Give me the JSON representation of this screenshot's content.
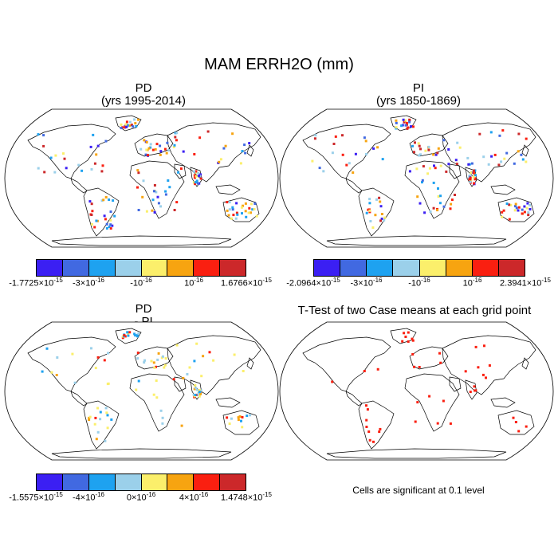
{
  "main_title": "MAM ERRH2O (mm)",
  "panels": {
    "pd": {
      "title": "PD",
      "subtitle": "(yrs 1995-2014)"
    },
    "pi": {
      "title": "PI",
      "subtitle": "(yrs 1850-1869)"
    },
    "diff": {
      "title": "PD",
      "subtitle": "- PI"
    },
    "ttest": {
      "title": "T-Test of two Case means at each grid point",
      "note": "Cells are significant at 0.1 level"
    }
  },
  "colors": [
    "#3b1ff3",
    "#4169e1",
    "#1ea2f0",
    "#9bd0ea",
    "#fbef6b",
    "#f7a410",
    "#fa1f10",
    "#cc282a"
  ],
  "colorbars": {
    "pd": [
      {
        "mantissa": "-1.7725",
        "times": "×10",
        "exp": "-15"
      },
      {
        "mantissa": "-3",
        "times": "×10",
        "exp": "-16"
      },
      {
        "mantissa": "",
        "times": "-10",
        "exp": "-16"
      },
      {
        "mantissa": "",
        "times": "10",
        "exp": "-16"
      },
      {
        "mantissa": "1.6766",
        "times": "×10",
        "exp": "-15"
      }
    ],
    "pi": [
      {
        "mantissa": "-2.0964",
        "times": "×10",
        "exp": "-15"
      },
      {
        "mantissa": "-3",
        "times": "×10",
        "exp": "-16"
      },
      {
        "mantissa": "",
        "times": "-10",
        "exp": "-16"
      },
      {
        "mantissa": "",
        "times": "10",
        "exp": "-16"
      },
      {
        "mantissa": "2.3941",
        "times": "×10",
        "exp": "-15"
      }
    ],
    "diff": [
      {
        "mantissa": "-1.5575",
        "times": "×10",
        "exp": "-15"
      },
      {
        "mantissa": "-4",
        "times": "×10",
        "exp": "-16"
      },
      {
        "mantissa": "0",
        "times": "×10",
        "exp": "-16"
      },
      {
        "mantissa": "4",
        "times": "×10",
        "exp": "-16"
      },
      {
        "mantissa": "1.4748",
        "times": "×10",
        "exp": "-15"
      }
    ]
  }
}
